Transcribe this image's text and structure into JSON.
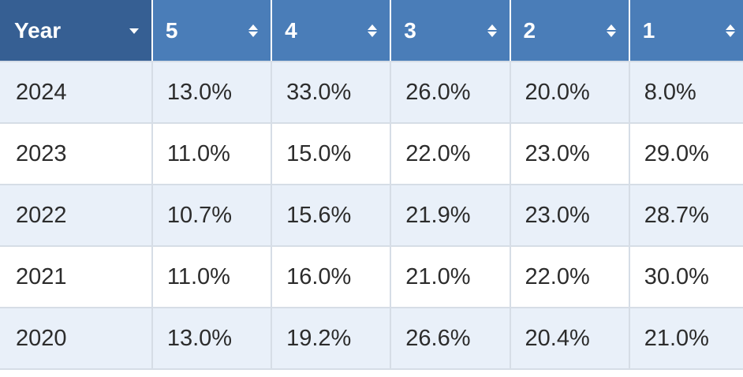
{
  "table": {
    "headers": [
      {
        "label": "Year",
        "icon": "dropdown-caret-icon"
      },
      {
        "label": "5",
        "icon": "sort-icon"
      },
      {
        "label": "4",
        "icon": "sort-icon"
      },
      {
        "label": "3",
        "icon": "sort-icon"
      },
      {
        "label": "2",
        "icon": "sort-icon"
      },
      {
        "label": "1",
        "icon": "sort-icon"
      }
    ],
    "rows": [
      {
        "year": "2024",
        "cells": [
          "13.0%",
          "33.0%",
          "26.0%",
          "20.0%",
          "8.0%"
        ]
      },
      {
        "year": "2023",
        "cells": [
          "11.0%",
          "15.0%",
          "22.0%",
          "23.0%",
          "29.0%"
        ]
      },
      {
        "year": "2022",
        "cells": [
          "10.7%",
          "15.6%",
          "21.9%",
          "23.0%",
          "28.7%"
        ]
      },
      {
        "year": "2021",
        "cells": [
          "11.0%",
          "16.0%",
          "21.0%",
          "22.0%",
          "30.0%"
        ]
      },
      {
        "year": "2020",
        "cells": [
          "13.0%",
          "19.2%",
          "26.6%",
          "20.4%",
          "21.0%"
        ]
      }
    ]
  },
  "colors": {
    "header_bg": "#4a7db8",
    "year_header_bg": "#365f93",
    "row_alt_bg": "#e9f0f9",
    "row_bg": "#ffffff"
  }
}
